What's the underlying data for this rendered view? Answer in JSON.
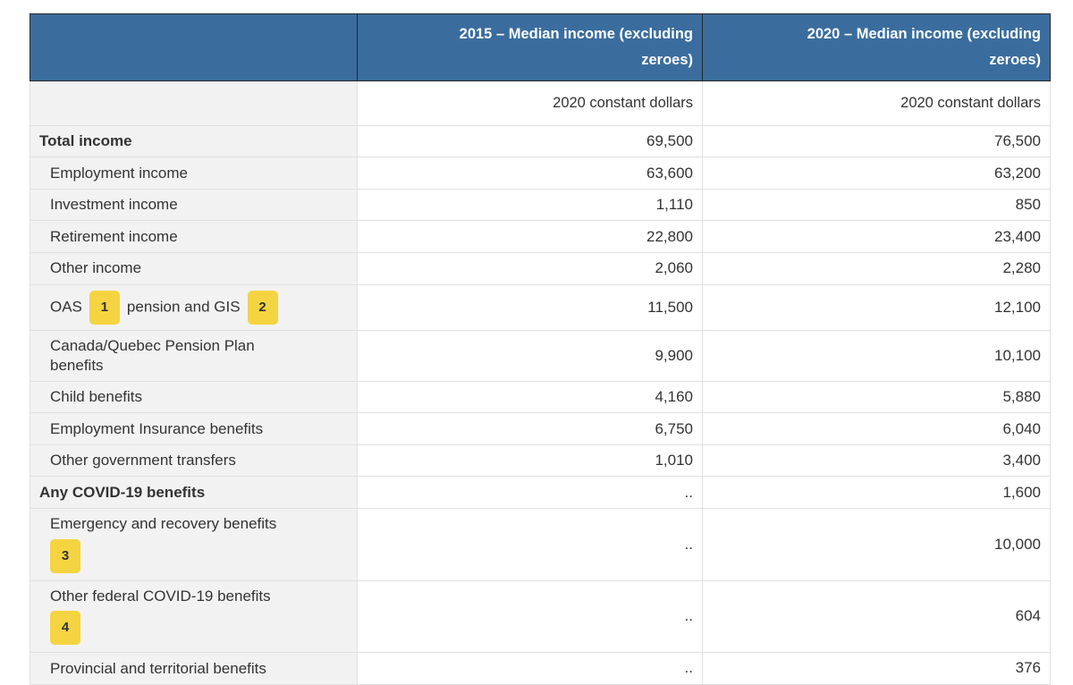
{
  "table": {
    "columns": [
      {
        "label": "2015 – Median income (excluding zeroes)",
        "unit": "2020 constant dollars"
      },
      {
        "label": "2020 – Median income (excluding zeroes)",
        "unit": "2020 constant dollars"
      }
    ],
    "rows": [
      {
        "label": "Total income",
        "bold": true,
        "values": [
          "69,500",
          "76,500"
        ]
      },
      {
        "label": "Employment income",
        "values": [
          "63,600",
          "63,200"
        ]
      },
      {
        "label": "Investment income",
        "values": [
          "1,110",
          "850"
        ]
      },
      {
        "label": "Retirement income",
        "values": [
          "22,800",
          "23,400"
        ]
      },
      {
        "label": "Other income",
        "values": [
          "2,060",
          "2,280"
        ]
      },
      {
        "segments": [
          {
            "text": "OAS"
          },
          {
            "footnote": "1"
          },
          {
            "text": "pension and GIS"
          },
          {
            "footnote": "2"
          }
        ],
        "values": [
          "11,500",
          "12,100"
        ]
      },
      {
        "label": "Canada/Quebec Pension Plan benefits",
        "values": [
          "9,900",
          "10,100"
        ]
      },
      {
        "label": "Child benefits",
        "values": [
          "4,160",
          "5,880"
        ]
      },
      {
        "label": "Employment Insurance benefits",
        "values": [
          "6,750",
          "6,040"
        ]
      },
      {
        "label": "Other government transfers",
        "values": [
          "1,010",
          "3,400"
        ]
      },
      {
        "label": "Any COVID-19 benefits",
        "bold": true,
        "values": [
          "..",
          "1,600"
        ]
      },
      {
        "label": "Emergency and recovery benefits",
        "footnote_below": "3",
        "values": [
          "..",
          "10,000"
        ]
      },
      {
        "label": "Other federal COVID-19 benefits",
        "footnote_below": "4",
        "values": [
          "..",
          "604"
        ]
      },
      {
        "label": "Provincial and territorial benefits",
        "values": [
          "..",
          "376"
        ]
      }
    ],
    "not_available_symbol": ".."
  },
  "colors": {
    "header_bg": "#3a6d9e",
    "header_text": "#ffffff",
    "header_border": "#262626",
    "label_bg": "#f2f2f2",
    "row_border": "#e0e0e0",
    "text": "#333333",
    "badge_bg": "#f5d441",
    "badge_text": "#333333"
  },
  "chart_data": {
    "type": "table",
    "title": "Median income (excluding zeroes), 2020 constant dollars",
    "columns": [
      "2015 – Median income (excluding zeroes)",
      "2020 – Median income (excluding zeroes)"
    ],
    "unit": "2020 constant dollars",
    "categories": [
      "Total income",
      "Employment income",
      "Investment income",
      "Retirement income",
      "Other income",
      "OAS pension and GIS",
      "Canada/Quebec Pension Plan benefits",
      "Child benefits",
      "Employment Insurance benefits",
      "Other government transfers",
      "Any COVID-19 benefits",
      "Emergency and recovery benefits",
      "Other federal COVID-19 benefits",
      "Provincial and territorial benefits"
    ],
    "series": [
      {
        "name": "2015",
        "values": [
          69500,
          63600,
          1110,
          22800,
          2060,
          11500,
          9900,
          4160,
          6750,
          1010,
          null,
          null,
          null,
          null
        ]
      },
      {
        "name": "2020",
        "values": [
          76500,
          63200,
          850,
          23400,
          2280,
          12100,
          10100,
          5880,
          6040,
          3400,
          1600,
          10000,
          604,
          376
        ]
      }
    ],
    "footnote_markers": {
      "OAS": "1",
      "GIS": "2",
      "Emergency and recovery benefits": "3",
      "Other federal COVID-19 benefits": "4"
    },
    "missing_value_symbol": ".."
  }
}
